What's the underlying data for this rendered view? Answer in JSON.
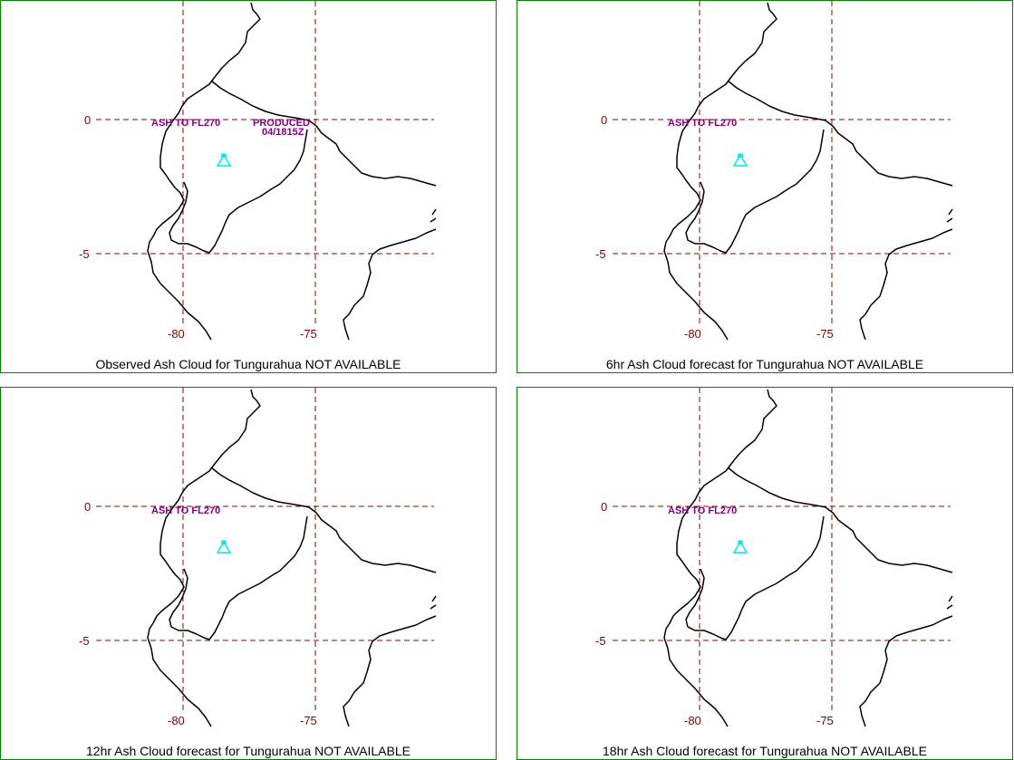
{
  "colors": {
    "grid": "#8b0000",
    "coast": "#000000",
    "border": "#008000",
    "volcano": "#00e5ee",
    "label": "#800080",
    "tick": "#800000"
  },
  "ticks": {
    "lat_0": "0",
    "lat_5": "-5",
    "lon_80": "-80",
    "lon_75": "-75"
  },
  "panels": [
    {
      "caption": "Observed Ash Cloud for Tungurahua NOT AVAILABLE",
      "ash_label": "ASH TO FL270",
      "produced_label": "PRODUCED",
      "produced_time": "04/1815Z"
    },
    {
      "caption": "6hr Ash Cloud forecast for Tungurahua NOT AVAILABLE",
      "ash_label": "ASH TO FL270"
    },
    {
      "caption": "12hr Ash Cloud forecast for Tungurahua NOT AVAILABLE",
      "ash_label": "ASH TO FL270"
    },
    {
      "caption": "18hr Ash Cloud forecast for Tungurahua NOT AVAILABLE",
      "ash_label": "ASH TO FL270"
    }
  ],
  "volcano_icon": "volcano-triangle-icon"
}
